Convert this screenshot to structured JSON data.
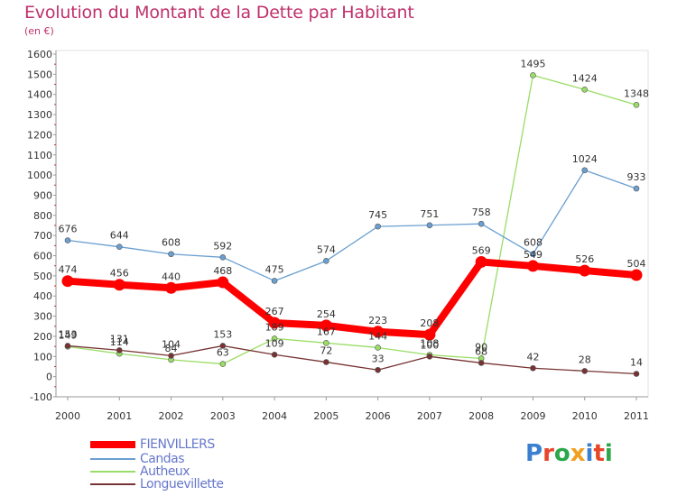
{
  "header": {
    "title": "Evolution du Montant de la Dette par Habitant",
    "subtitle": "(en €)"
  },
  "logo": {
    "text": "Proxiti",
    "colors": [
      "#3a7fd0",
      "#e8462a",
      "#2aa84a",
      "#f0a020",
      "#3a7fd0",
      "#e8462a",
      "#2aa84a"
    ]
  },
  "chart_data": {
    "type": "line",
    "title": "Evolution du Montant de la Dette par Habitant",
    "subtitle": "(en €)",
    "xlabel": "",
    "ylabel": "",
    "x": [
      "2000",
      "2001",
      "2002",
      "2003",
      "2004",
      "2005",
      "2006",
      "2007",
      "2008",
      "2009",
      "2010",
      "2011"
    ],
    "ylim": [
      -100,
      1600
    ],
    "yticks": [
      -100,
      0,
      100,
      200,
      300,
      400,
      500,
      600,
      700,
      800,
      900,
      1000,
      1100,
      1200,
      1300,
      1400,
      1500,
      1600
    ],
    "grid": false,
    "legend": "bottom-left",
    "series": [
      {
        "name": "FIENVILLERS",
        "color": "#ff0000",
        "values": [
          474,
          456,
          440,
          468,
          267,
          254,
          223,
          208,
          569,
          549,
          526,
          504
        ],
        "labels": [
          "474",
          "456",
          "440",
          "468",
          "267",
          "254",
          "223",
          "208",
          "569",
          "549",
          "526",
          "504"
        ]
      },
      {
        "name": "Candas",
        "color": "#6a9fd0",
        "values": [
          676,
          644,
          608,
          592,
          475,
          574,
          745,
          751,
          758,
          608,
          1024,
          933
        ],
        "labels": [
          "676",
          "644",
          "608",
          "592",
          "475",
          "574",
          "745",
          "751",
          "758",
          "608",
          "1024",
          "933"
        ]
      },
      {
        "name": "Autheux",
        "color": "#99dd66",
        "values": [
          149,
          114,
          84,
          63,
          189,
          167,
          144,
          108,
          90,
          1495,
          1424,
          1348
        ],
        "labels": [
          "149",
          "114",
          "84",
          "63",
          "189",
          "167",
          "144",
          "108",
          "90",
          "1495",
          "1424",
          "1348"
        ]
      },
      {
        "name": "Longuevillette",
        "color": "#773333",
        "values": [
          153,
          131,
          104,
          153,
          109,
          72,
          33,
          100,
          68,
          42,
          28,
          14
        ],
        "labels": [
          "153",
          "131",
          "104",
          "153",
          "109",
          "72",
          "33",
          "100",
          "68",
          "42",
          "28",
          "14"
        ]
      }
    ]
  }
}
